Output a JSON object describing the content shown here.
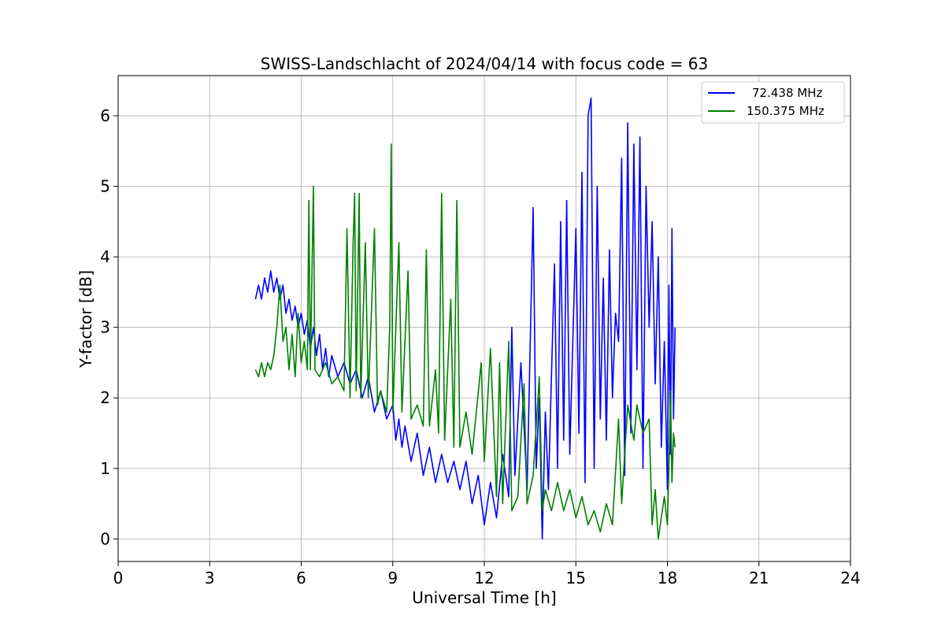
{
  "chart_data": {
    "type": "line",
    "title": "SWISS-Landschlacht of 2024/04/14 with focus code = 63",
    "xlabel": "Universal Time [h]",
    "ylabel": "Y-factor [dB]",
    "xlim": [
      0,
      24
    ],
    "ylim": [
      -0.32,
      6.57
    ],
    "xticks": [
      "0",
      "3",
      "6",
      "9",
      "12",
      "15",
      "18",
      "21",
      "24"
    ],
    "yticks": [
      "0",
      "1",
      "2",
      "3",
      "4",
      "5",
      "6"
    ],
    "grid": true,
    "legend_position": "top-right",
    "series": [
      {
        "name": "72.438 MHz",
        "color": "#0000ff",
        "points": [
          [
            4.5,
            3.4
          ],
          [
            4.6,
            3.6
          ],
          [
            4.7,
            3.4
          ],
          [
            4.8,
            3.7
          ],
          [
            4.9,
            3.5
          ],
          [
            5.0,
            3.8
          ],
          [
            5.1,
            3.5
          ],
          [
            5.2,
            3.7
          ],
          [
            5.3,
            3.4
          ],
          [
            5.4,
            3.6
          ],
          [
            5.5,
            3.2
          ],
          [
            5.6,
            3.4
          ],
          [
            5.7,
            3.1
          ],
          [
            5.8,
            3.3
          ],
          [
            5.9,
            3.0
          ],
          [
            6.0,
            3.2
          ],
          [
            6.1,
            2.9
          ],
          [
            6.2,
            3.1
          ],
          [
            6.3,
            2.7
          ],
          [
            6.4,
            3.0
          ],
          [
            6.5,
            2.6
          ],
          [
            6.6,
            2.9
          ],
          [
            6.7,
            2.4
          ],
          [
            6.8,
            2.7
          ],
          [
            6.9,
            2.3
          ],
          [
            7.0,
            2.6
          ],
          [
            7.2,
            2.3
          ],
          [
            7.4,
            2.5
          ],
          [
            7.6,
            2.2
          ],
          [
            7.8,
            2.4
          ],
          [
            8.0,
            2.0
          ],
          [
            8.2,
            2.3
          ],
          [
            8.4,
            1.8
          ],
          [
            8.6,
            2.1
          ],
          [
            8.8,
            1.7
          ],
          [
            9.0,
            1.9
          ],
          [
            9.1,
            1.4
          ],
          [
            9.2,
            1.7
          ],
          [
            9.3,
            1.3
          ],
          [
            9.4,
            1.6
          ],
          [
            9.6,
            1.1
          ],
          [
            9.8,
            1.5
          ],
          [
            10.0,
            0.9
          ],
          [
            10.2,
            1.3
          ],
          [
            10.4,
            0.8
          ],
          [
            10.6,
            1.2
          ],
          [
            10.8,
            0.8
          ],
          [
            11.0,
            1.1
          ],
          [
            11.2,
            0.7
          ],
          [
            11.4,
            1.1
          ],
          [
            11.6,
            0.5
          ],
          [
            11.8,
            0.9
          ],
          [
            12.0,
            0.2
          ],
          [
            12.2,
            0.8
          ],
          [
            12.4,
            0.3
          ],
          [
            12.6,
            1.2
          ],
          [
            12.8,
            0.6
          ],
          [
            12.9,
            3.0
          ],
          [
            13.0,
            0.9
          ],
          [
            13.2,
            2.5
          ],
          [
            13.4,
            0.7
          ],
          [
            13.6,
            4.7
          ],
          [
            13.7,
            1.0
          ],
          [
            13.8,
            2.0
          ],
          [
            13.9,
            0.0
          ],
          [
            14.0,
            1.8
          ],
          [
            14.1,
            0.7
          ],
          [
            14.3,
            3.9
          ],
          [
            14.4,
            1.0
          ],
          [
            14.5,
            4.5
          ],
          [
            14.6,
            1.4
          ],
          [
            14.7,
            4.8
          ],
          [
            14.8,
            1.2
          ],
          [
            15.0,
            4.4
          ],
          [
            15.1,
            1.5
          ],
          [
            15.2,
            5.2
          ],
          [
            15.3,
            0.8
          ],
          [
            15.4,
            6.0
          ],
          [
            15.5,
            6.25
          ],
          [
            15.6,
            1.0
          ],
          [
            15.7,
            5.0
          ],
          [
            15.8,
            1.7
          ],
          [
            15.9,
            3.7
          ],
          [
            16.0,
            1.4
          ],
          [
            16.1,
            4.1
          ],
          [
            16.2,
            2.0
          ],
          [
            16.3,
            3.2
          ],
          [
            16.4,
            2.8
          ],
          [
            16.5,
            5.4
          ],
          [
            16.6,
            0.9
          ],
          [
            16.7,
            5.9
          ],
          [
            16.8,
            1.5
          ],
          [
            16.9,
            5.6
          ],
          [
            17.0,
            2.4
          ],
          [
            17.1,
            5.7
          ],
          [
            17.2,
            1.0
          ],
          [
            17.3,
            5.0
          ],
          [
            17.4,
            3.0
          ],
          [
            17.5,
            4.5
          ],
          [
            17.6,
            2.2
          ],
          [
            17.7,
            4.0
          ],
          [
            17.8,
            1.3
          ],
          [
            17.9,
            2.8
          ],
          [
            18.0,
            0.7
          ],
          [
            18.05,
            3.6
          ],
          [
            18.1,
            1.2
          ],
          [
            18.15,
            4.4
          ],
          [
            18.2,
            1.7
          ],
          [
            18.25,
            3.0
          ]
        ]
      },
      {
        "name": "150.375 MHz",
        "color": "#008000",
        "points": [
          [
            4.5,
            2.4
          ],
          [
            4.6,
            2.3
          ],
          [
            4.7,
            2.5
          ],
          [
            4.8,
            2.3
          ],
          [
            4.9,
            2.5
          ],
          [
            5.0,
            2.4
          ],
          [
            5.1,
            2.6
          ],
          [
            5.2,
            3.0
          ],
          [
            5.3,
            3.6
          ],
          [
            5.4,
            2.8
          ],
          [
            5.5,
            3.0
          ],
          [
            5.6,
            2.4
          ],
          [
            5.7,
            2.9
          ],
          [
            5.8,
            2.3
          ],
          [
            5.9,
            3.2
          ],
          [
            6.0,
            2.5
          ],
          [
            6.1,
            2.8
          ],
          [
            6.2,
            2.4
          ],
          [
            6.25,
            4.8
          ],
          [
            6.3,
            2.4
          ],
          [
            6.4,
            5.0
          ],
          [
            6.45,
            2.4
          ],
          [
            6.6,
            2.3
          ],
          [
            6.8,
            2.5
          ],
          [
            7.0,
            2.2
          ],
          [
            7.2,
            2.3
          ],
          [
            7.4,
            2.1
          ],
          [
            7.5,
            4.4
          ],
          [
            7.6,
            2.0
          ],
          [
            7.7,
            4.2
          ],
          [
            7.75,
            4.9
          ],
          [
            7.8,
            2.1
          ],
          [
            7.9,
            4.9
          ],
          [
            7.95,
            2.0
          ],
          [
            8.1,
            4.2
          ],
          [
            8.2,
            2.0
          ],
          [
            8.4,
            4.4
          ],
          [
            8.5,
            1.9
          ],
          [
            8.6,
            2.1
          ],
          [
            8.8,
            1.8
          ],
          [
            8.9,
            3.0
          ],
          [
            8.95,
            5.6
          ],
          [
            9.0,
            1.8
          ],
          [
            9.2,
            4.2
          ],
          [
            9.3,
            1.8
          ],
          [
            9.5,
            3.8
          ],
          [
            9.6,
            1.7
          ],
          [
            9.8,
            1.9
          ],
          [
            10.0,
            1.6
          ],
          [
            10.1,
            4.1
          ],
          [
            10.2,
            1.6
          ],
          [
            10.4,
            2.4
          ],
          [
            10.5,
            1.5
          ],
          [
            10.6,
            4.9
          ],
          [
            10.7,
            1.4
          ],
          [
            10.9,
            3.4
          ],
          [
            11.0,
            1.3
          ],
          [
            11.1,
            4.8
          ],
          [
            11.2,
            1.3
          ],
          [
            11.4,
            1.8
          ],
          [
            11.6,
            1.2
          ],
          [
            11.9,
            2.5
          ],
          [
            12.0,
            1.1
          ],
          [
            12.2,
            2.7
          ],
          [
            12.4,
            0.6
          ],
          [
            12.5,
            2.5
          ],
          [
            12.6,
            0.5
          ],
          [
            12.8,
            2.8
          ],
          [
            12.9,
            0.4
          ],
          [
            13.1,
            0.6
          ],
          [
            13.3,
            2.2
          ],
          [
            13.4,
            0.5
          ],
          [
            13.6,
            0.9
          ],
          [
            13.8,
            2.3
          ],
          [
            13.9,
            0.4
          ],
          [
            14.0,
            0.7
          ],
          [
            14.2,
            0.4
          ],
          [
            14.4,
            0.8
          ],
          [
            14.6,
            0.4
          ],
          [
            14.8,
            0.7
          ],
          [
            15.0,
            0.3
          ],
          [
            15.2,
            0.6
          ],
          [
            15.4,
            0.2
          ],
          [
            15.6,
            0.4
          ],
          [
            15.8,
            0.1
          ],
          [
            16.0,
            0.5
          ],
          [
            16.2,
            0.2
          ],
          [
            16.4,
            1.7
          ],
          [
            16.5,
            0.5
          ],
          [
            16.7,
            1.9
          ],
          [
            16.9,
            1.4
          ],
          [
            17.0,
            1.9
          ],
          [
            17.2,
            1.5
          ],
          [
            17.4,
            1.7
          ],
          [
            17.5,
            0.2
          ],
          [
            17.6,
            0.7
          ],
          [
            17.7,
            0.0
          ],
          [
            17.9,
            0.6
          ],
          [
            18.0,
            0.2
          ],
          [
            18.05,
            1.0
          ],
          [
            18.1,
            2.1
          ],
          [
            18.15,
            0.8
          ],
          [
            18.2,
            1.5
          ],
          [
            18.25,
            1.3
          ]
        ]
      }
    ]
  }
}
